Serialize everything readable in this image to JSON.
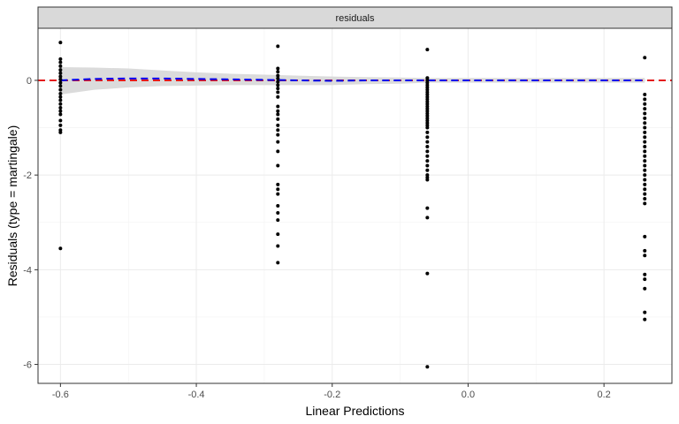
{
  "chart_data": {
    "type": "scatter",
    "facet_label": "residuals",
    "xlabel": "Linear Predictions",
    "ylabel": "Residuals (type = martingale)",
    "xlim": [
      -0.633,
      0.3
    ],
    "ylim": [
      -6.4,
      1.1
    ],
    "x_ticks": [
      -0.6,
      -0.4,
      -0.2,
      0.0,
      0.2
    ],
    "x_tick_labels": [
      "-0.6",
      "-0.4",
      "-0.2",
      "0.0",
      "0.2"
    ],
    "y_ticks": [
      0,
      -2,
      -4,
      -6
    ],
    "y_tick_labels": [
      "0",
      "-2",
      "-4",
      "-6"
    ],
    "grid": true,
    "reference_line": {
      "y": 0,
      "color": "#e41a1c",
      "style": "dashed"
    },
    "smooth": {
      "color": "#0000ee",
      "band_color": "#d9d9d9",
      "x": [
        -0.6,
        -0.55,
        -0.5,
        -0.45,
        -0.4,
        -0.35,
        -0.3,
        -0.25,
        -0.2,
        -0.15,
        -0.1,
        -0.06,
        0.0,
        0.1,
        0.2,
        0.26
      ],
      "y": [
        0.0,
        0.03,
        0.04,
        0.04,
        0.03,
        0.02,
        0.01,
        0.0,
        -0.01,
        0.0,
        0.0,
        0.0,
        0.0,
        0.0,
        0.0,
        0.0
      ],
      "upper": [
        0.28,
        0.27,
        0.25,
        0.21,
        0.17,
        0.14,
        0.12,
        0.1,
        0.08,
        0.07,
        0.06,
        0.05,
        0.05,
        0.05,
        0.05,
        0.05
      ],
      "lower": [
        -0.3,
        -0.2,
        -0.15,
        -0.12,
        -0.11,
        -0.1,
        -0.1,
        -0.1,
        -0.1,
        -0.08,
        -0.07,
        -0.05,
        -0.05,
        -0.05,
        -0.05,
        -0.05
      ]
    },
    "series": [
      {
        "x": -0.6,
        "y": [
          0.8,
          0.45,
          0.38,
          0.3,
          0.22,
          0.15,
          0.08,
          0.02,
          -0.05,
          -0.12,
          -0.2,
          -0.28,
          -0.35,
          -0.42,
          -0.5,
          -0.58,
          -0.65,
          -0.72,
          -0.85,
          -0.95,
          -1.05,
          -1.1,
          -3.55
        ]
      },
      {
        "x": -0.28,
        "y": [
          0.72,
          0.25,
          0.18,
          0.1,
          0.04,
          -0.03,
          -0.1,
          -0.17,
          -0.25,
          -0.35,
          -0.55,
          -0.65,
          -0.72,
          -0.82,
          -0.95,
          -1.05,
          -1.15,
          -1.3,
          -1.5,
          -1.8,
          -2.2,
          -2.3,
          -2.4,
          -2.65,
          -2.8,
          -2.95,
          -3.25,
          -3.5,
          -3.85
        ]
      },
      {
        "x": -0.06,
        "y": [
          0.65,
          0.05,
          0.0,
          -0.05,
          -0.1,
          -0.15,
          -0.2,
          -0.25,
          -0.3,
          -0.35,
          -0.4,
          -0.45,
          -0.5,
          -0.55,
          -0.6,
          -0.65,
          -0.7,
          -0.75,
          -0.8,
          -0.85,
          -0.9,
          -0.95,
          -1.0,
          -1.1,
          -1.2,
          -1.3,
          -1.4,
          -1.5,
          -1.6,
          -1.7,
          -1.8,
          -1.9,
          -2.0,
          -2.05,
          -2.1,
          -2.7,
          -2.9,
          -4.08,
          -6.05
        ]
      },
      {
        "x": 0.26,
        "y": [
          0.48,
          -0.3,
          -0.4,
          -0.5,
          -0.6,
          -0.7,
          -0.8,
          -0.9,
          -1.0,
          -1.1,
          -1.2,
          -1.3,
          -1.4,
          -1.5,
          -1.6,
          -1.7,
          -1.8,
          -1.9,
          -2.0,
          -2.1,
          -2.2,
          -2.3,
          -2.4,
          -2.5,
          -2.6,
          -3.3,
          -3.6,
          -3.7,
          -4.1,
          -4.2,
          -4.4,
          -4.9,
          -5.05
        ]
      }
    ]
  }
}
